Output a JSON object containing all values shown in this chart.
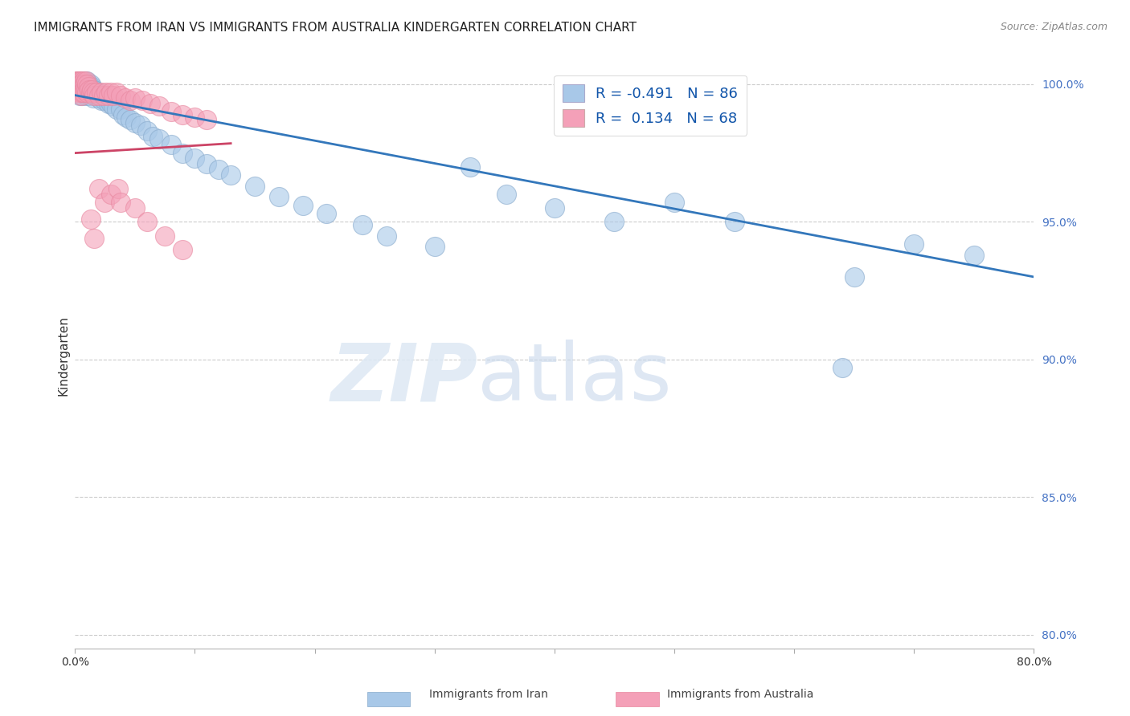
{
  "title": "IMMIGRANTS FROM IRAN VS IMMIGRANTS FROM AUSTRALIA KINDERGARTEN CORRELATION CHART",
  "source": "Source: ZipAtlas.com",
  "ylabel": "Kindergarten",
  "xlim": [
    0.0,
    0.8
  ],
  "ylim": [
    0.795,
    1.008
  ],
  "xticks": [
    0.0,
    0.1,
    0.2,
    0.3,
    0.4,
    0.5,
    0.6,
    0.7,
    0.8
  ],
  "xticklabels": [
    "0.0%",
    "",
    "",
    "",
    "",
    "",
    "",
    "",
    "80.0%"
  ],
  "yticks_right": [
    1.0,
    0.95,
    0.9,
    0.85,
    0.8
  ],
  "yticklabels_right": [
    "100.0%",
    "95.0%",
    "90.0%",
    "85.0%",
    "80.0%"
  ],
  "blue_color": "#a8c8e8",
  "pink_color": "#f4a0b8",
  "blue_edge_color": "#88aacc",
  "pink_edge_color": "#e888a0",
  "blue_line_color": "#3377bb",
  "pink_line_color": "#cc4466",
  "blue_trend_x0": 0.0,
  "blue_trend_y0": 0.996,
  "blue_trend_x1": 0.8,
  "blue_trend_y1": 0.93,
  "pink_trend_x0": 0.0,
  "pink_trend_y0": 0.975,
  "pink_trend_x1": 0.13,
  "pink_trend_y1": 0.9785,
  "footer_blue_label": "Immigrants from Iran",
  "footer_pink_label": "Immigrants from Australia",
  "background_color": "#ffffff",
  "grid_color": "#cccccc",
  "title_fontsize": 11,
  "axis_label_fontsize": 10,
  "tick_fontsize": 10,
  "right_tick_color": "#4472c4",
  "legend_blue_r": "R = -0.491",
  "legend_blue_n": "N = 86",
  "legend_pink_r": "R =  0.134",
  "legend_pink_n": "N = 68",
  "blue_dots_x": [
    0.001,
    0.002,
    0.002,
    0.003,
    0.003,
    0.003,
    0.003,
    0.004,
    0.004,
    0.004,
    0.004,
    0.004,
    0.005,
    0.005,
    0.005,
    0.005,
    0.006,
    0.006,
    0.006,
    0.006,
    0.007,
    0.007,
    0.007,
    0.008,
    0.008,
    0.008,
    0.009,
    0.009,
    0.009,
    0.01,
    0.01,
    0.011,
    0.011,
    0.012,
    0.012,
    0.013,
    0.013,
    0.014,
    0.015,
    0.015,
    0.016,
    0.017,
    0.018,
    0.019,
    0.02,
    0.021,
    0.022,
    0.024,
    0.025,
    0.026,
    0.028,
    0.03,
    0.032,
    0.035,
    0.038,
    0.04,
    0.043,
    0.046,
    0.05,
    0.055,
    0.06,
    0.065,
    0.07,
    0.08,
    0.09,
    0.1,
    0.11,
    0.12,
    0.13,
    0.15,
    0.17,
    0.19,
    0.21,
    0.24,
    0.26,
    0.3,
    0.33,
    0.36,
    0.4,
    0.45,
    0.5,
    0.55,
    0.64,
    0.65,
    0.7,
    0.75
  ],
  "blue_dots_y": [
    0.998,
    0.999,
    0.998,
    1.0,
    0.999,
    0.998,
    0.997,
    1.0,
    0.999,
    0.998,
    0.997,
    0.996,
    1.001,
    0.999,
    0.998,
    0.997,
    1.0,
    0.999,
    0.998,
    0.996,
    1.0,
    0.999,
    0.997,
    1.001,
    0.999,
    0.997,
    1.0,
    0.998,
    0.996,
    1.001,
    0.998,
    1.0,
    0.997,
    0.999,
    0.996,
    1.0,
    0.997,
    0.999,
    0.998,
    0.995,
    0.998,
    0.997,
    0.996,
    0.997,
    0.995,
    0.996,
    0.994,
    0.996,
    0.994,
    0.995,
    0.993,
    0.993,
    0.992,
    0.991,
    0.991,
    0.989,
    0.988,
    0.987,
    0.986,
    0.985,
    0.983,
    0.981,
    0.98,
    0.978,
    0.975,
    0.973,
    0.971,
    0.969,
    0.967,
    0.963,
    0.959,
    0.956,
    0.953,
    0.949,
    0.945,
    0.941,
    0.97,
    0.96,
    0.955,
    0.95,
    0.957,
    0.95,
    0.897,
    0.93,
    0.942,
    0.938
  ],
  "pink_dots_x": [
    0.001,
    0.001,
    0.002,
    0.002,
    0.002,
    0.002,
    0.003,
    0.003,
    0.003,
    0.003,
    0.003,
    0.004,
    0.004,
    0.004,
    0.004,
    0.005,
    0.005,
    0.005,
    0.005,
    0.006,
    0.006,
    0.006,
    0.007,
    0.007,
    0.007,
    0.008,
    0.008,
    0.009,
    0.009,
    0.01,
    0.01,
    0.011,
    0.012,
    0.013,
    0.014,
    0.015,
    0.016,
    0.018,
    0.02,
    0.022,
    0.024,
    0.026,
    0.028,
    0.03,
    0.032,
    0.035,
    0.038,
    0.042,
    0.046,
    0.05,
    0.056,
    0.063,
    0.07,
    0.08,
    0.09,
    0.1,
    0.11,
    0.013,
    0.016,
    0.02,
    0.025,
    0.03,
    0.036,
    0.038,
    0.05,
    0.06,
    0.075,
    0.09
  ],
  "pink_dots_y": [
    1.001,
    1.0,
    1.001,
    1.0,
    0.999,
    0.998,
    1.001,
    1.0,
    0.999,
    0.998,
    0.997,
    1.001,
    1.0,
    0.999,
    0.997,
    1.001,
    1.0,
    0.998,
    0.996,
    1.0,
    0.999,
    0.997,
    1.001,
    0.999,
    0.997,
    1.0,
    0.998,
    1.001,
    0.998,
    1.0,
    0.997,
    0.999,
    0.998,
    0.997,
    0.998,
    0.997,
    0.996,
    0.997,
    0.996,
    0.997,
    0.996,
    0.997,
    0.996,
    0.997,
    0.996,
    0.997,
    0.996,
    0.995,
    0.994,
    0.995,
    0.994,
    0.993,
    0.992,
    0.99,
    0.989,
    0.988,
    0.987,
    0.951,
    0.944,
    0.962,
    0.957,
    0.96,
    0.962,
    0.957,
    0.955,
    0.95,
    0.945,
    0.94
  ]
}
